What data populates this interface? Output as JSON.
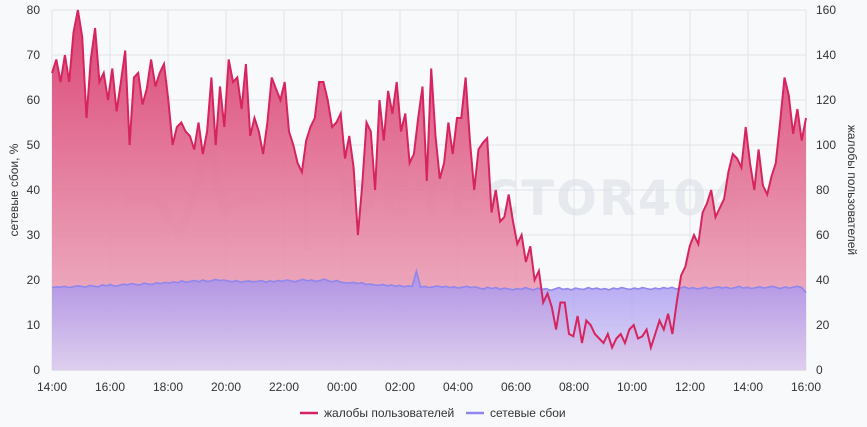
{
  "chart_data": {
    "type": "area",
    "watermark": "DETECTOR404",
    "x_ticks": [
      "14:00",
      "16:00",
      "18:00",
      "20:00",
      "22:00",
      "00:00",
      "02:00",
      "04:00",
      "06:00",
      "08:00",
      "10:00",
      "12:00",
      "14:00",
      "16:00"
    ],
    "y_left": {
      "label": "сетевые сбои, %",
      "range": [
        0,
        80
      ],
      "ticks": [
        "0",
        "10",
        "20",
        "30",
        "40",
        "50",
        "60",
        "70",
        "80"
      ]
    },
    "y_right": {
      "label": "жалобы пользователей",
      "range": [
        0,
        160
      ],
      "ticks": [
        "0",
        "20",
        "40",
        "60",
        "80",
        "100",
        "120",
        "140",
        "160"
      ]
    },
    "grid": true,
    "legend_position": "bottom",
    "series": [
      {
        "name": "жалобы пользователей",
        "axis": "right",
        "color": "#d6245f",
        "values": [
          132,
          138,
          128,
          140,
          128,
          150,
          160,
          148,
          112,
          138,
          152,
          128,
          132,
          120,
          134,
          115,
          128,
          142,
          100,
          130,
          132,
          118,
          125,
          138,
          126,
          132,
          136,
          120,
          100,
          108,
          110,
          106,
          104,
          98,
          110,
          96,
          106,
          130,
          100,
          126,
          108,
          138,
          128,
          130,
          116,
          136,
          104,
          112,
          106,
          96,
          110,
          130,
          125,
          120,
          128,
          106,
          100,
          92,
          88,
          102,
          108,
          112,
          128,
          128,
          120,
          108,
          110,
          114,
          94,
          104,
          90,
          60,
          82,
          110,
          106,
          80,
          120,
          102,
          124,
          114,
          128,
          106,
          114,
          92,
          96,
          112,
          126,
          84,
          134,
          104,
          85,
          92,
          110,
          96,
          112,
          112,
          130,
          102,
          80,
          98,
          101,
          103,
          70,
          80,
          66,
          68,
          78,
          66,
          56,
          60,
          48,
          55,
          40,
          44,
          30,
          34,
          28,
          18,
          30,
          30,
          16,
          15,
          24,
          12,
          22,
          20,
          16,
          14,
          12,
          16,
          10,
          14,
          16,
          12,
          18,
          20,
          14,
          15,
          18,
          10,
          16,
          22,
          18,
          25,
          16,
          30,
          42,
          46,
          55,
          60,
          56,
          70,
          74,
          80,
          68,
          72,
          76,
          88,
          96,
          94,
          90,
          108,
          92,
          80,
          98,
          82,
          78,
          86,
          92,
          110,
          130,
          122,
          105,
          116,
          102,
          112
        ]
      },
      {
        "name": "сетевые сбои",
        "axis": "left",
        "color": "#8f86ee",
        "values": [
          18.3,
          18.5,
          18.4,
          18.6,
          18.3,
          18.5,
          18.7,
          18.6,
          18.4,
          18.8,
          18.6,
          18.5,
          18.9,
          18.7,
          19.0,
          18.6,
          18.8,
          19.1,
          18.9,
          19.2,
          19.0,
          18.9,
          19.3,
          19.1,
          19.0,
          19.4,
          19.2,
          19.5,
          19.3,
          19.6,
          19.4,
          19.8,
          19.5,
          19.7,
          19.9,
          19.6,
          20.0,
          19.7,
          19.8,
          20.1,
          19.9,
          20.0,
          19.8,
          19.6,
          19.9,
          19.5,
          19.7,
          19.8,
          19.6,
          19.7,
          19.9,
          19.5,
          19.8,
          19.6,
          19.9,
          19.7,
          20.0,
          19.8,
          19.6,
          19.9,
          20.1,
          19.8,
          20.0,
          19.7,
          19.9,
          20.2,
          19.8,
          19.6,
          19.9,
          19.5,
          19.4,
          19.3,
          19.5,
          19.2,
          19.4,
          19.0,
          19.1,
          18.9,
          18.8,
          19.0,
          18.7,
          18.9,
          18.6,
          18.8,
          18.5,
          18.7,
          18.6,
          22.0,
          18.4,
          18.6,
          18.3,
          18.5,
          18.7,
          18.4,
          18.6,
          18.3,
          18.5,
          18.2,
          18.4,
          18.6,
          18.3,
          18.5,
          18.2,
          18.0,
          18.4,
          18.1,
          18.3,
          17.9,
          18.2,
          18.0,
          17.8,
          18.1,
          17.9,
          18.3,
          18.0,
          17.8,
          18.2,
          17.9,
          18.1,
          17.7,
          18.0,
          18.3,
          17.9,
          18.1,
          17.8,
          18.2,
          18.0,
          17.9,
          18.3,
          18.0,
          18.2,
          17.9,
          18.1,
          17.8,
          18.2,
          18.0,
          18.3,
          18.1,
          17.9,
          18.2,
          18.0,
          18.3,
          18.1,
          17.9,
          18.2,
          18.0,
          18.3,
          18.1,
          18.4,
          18.0,
          18.2,
          18.5,
          18.1,
          18.3,
          18.0,
          18.2,
          18.4,
          18.1,
          18.3,
          18.5,
          18.2,
          18.4,
          18.1,
          18.3,
          18.6,
          18.2,
          18.4,
          18.1,
          18.3,
          18.5,
          18.2,
          18.4,
          18.6,
          18.3,
          18.1,
          18.5,
          18.2,
          18.4,
          18.6,
          18.3,
          17.2
        ]
      }
    ]
  }
}
